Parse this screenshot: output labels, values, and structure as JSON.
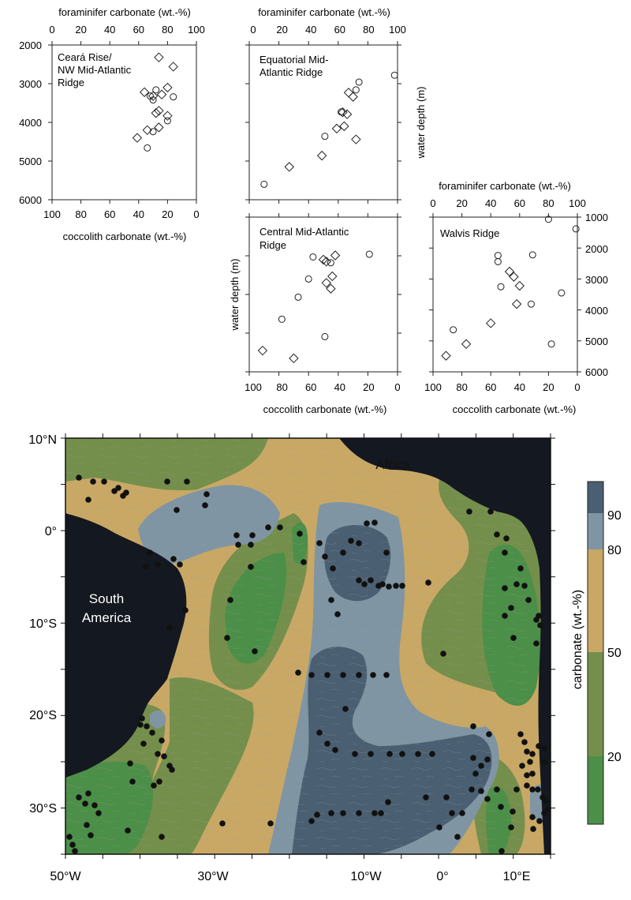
{
  "chart_data": [
    {
      "type": "scatter",
      "title": "Ceará Rise/ NW Mid-Atlantic Ridge",
      "title_lines": [
        "Ceará Rise/",
        "NW Mid-Atlantic",
        "Ridge"
      ],
      "top_axis_label": "foraminifer carbonate (wt.-%)",
      "bottom_axis_label": "coccolith carbonate (wt.-%)",
      "left_axis_label": "",
      "right_axis_label": "",
      "top_ticks": [
        "0",
        "20",
        "40",
        "60",
        "80",
        "100"
      ],
      "bottom_ticks": [
        "100",
        "80",
        "60",
        "40",
        "20",
        "0"
      ],
      "depth_ticks": [
        "2000",
        "3000",
        "4000",
        "5000",
        "6000"
      ],
      "depth_range": [
        2000,
        6000
      ],
      "foram_range": [
        0,
        100
      ],
      "series": [
        {
          "marker": "diamond",
          "points": [
            [
              74,
              2320
            ],
            [
              84,
              2560
            ],
            [
              64,
              3220
            ],
            [
              80,
              3100
            ],
            [
              70,
              3320
            ],
            [
              76,
              3280
            ],
            [
              74,
              3700
            ],
            [
              72,
              3760
            ],
            [
              80,
              3830
            ],
            [
              66,
              4200
            ],
            [
              74,
              4130
            ],
            [
              59,
              4400
            ]
          ]
        },
        {
          "marker": "circle",
          "points": [
            [
              68,
              3320
            ],
            [
              72,
              3160
            ],
            [
              70,
              3420
            ],
            [
              84,
              3340
            ],
            [
              80,
              3960
            ],
            [
              70,
              4240
            ],
            [
              66,
              4660
            ]
          ]
        }
      ]
    },
    {
      "type": "scatter",
      "title": "Equatorial Mid-Atlantic Ridge",
      "title_lines": [
        "Equatorial Mid-",
        "Atlantic Ridge"
      ],
      "top_axis_label": "foraminifer carbonate (wt.-%)",
      "bottom_axis_label": "",
      "left_axis_label": "",
      "right_axis_label": "water depth (m)",
      "top_ticks": [
        "0",
        "20",
        "40",
        "60",
        "80",
        "100"
      ],
      "bottom_ticks": [],
      "depth_ticks": [],
      "depth_range": [
        2000,
        6000
      ],
      "foram_range": [
        0,
        100
      ],
      "series": [
        {
          "marker": "diamond",
          "points": [
            [
              67,
              3230
            ],
            [
              70,
              3340
            ],
            [
              63,
              3740
            ],
            [
              66,
              3790
            ],
            [
              64,
              4100
            ],
            [
              59,
              4160
            ],
            [
              72,
              4440
            ],
            [
              49,
              4860
            ],
            [
              27,
              5150
            ]
          ]
        },
        {
          "marker": "circle",
          "points": [
            [
              98,
              2780
            ],
            [
              74,
              2960
            ],
            [
              72,
              3160
            ],
            [
              62,
              3730
            ],
            [
              51,
              4360
            ],
            [
              10,
              5600
            ]
          ]
        }
      ]
    },
    {
      "type": "scatter",
      "title": "Central Mid-Atlantic Ridge",
      "title_lines": [
        "Central Mid-Atlantic",
        "Ridge"
      ],
      "top_axis_label": "",
      "bottom_axis_label": "coccolith carbonate (wt.-%)",
      "left_axis_label": "water depth (m)",
      "right_axis_label": "",
      "top_ticks": [],
      "bottom_ticks": [
        "100",
        "80",
        "60",
        "40",
        "20",
        "0"
      ],
      "depth_ticks": [],
      "depth_range": [
        2000,
        6000
      ],
      "foram_range": [
        0,
        100
      ],
      "series": [
        {
          "marker": "diamond",
          "points": [
            [
              58,
              2990
            ],
            [
              50,
              3100
            ],
            [
              52,
              3150
            ],
            [
              56,
              3530
            ],
            [
              52,
              3700
            ],
            [
              55,
              3850
            ],
            [
              9,
              5450
            ],
            [
              30,
              5650
            ]
          ]
        },
        {
          "marker": "circle",
          "points": [
            [
              81,
              2960
            ],
            [
              43,
              3030
            ],
            [
              55,
              3180
            ],
            [
              40,
              3600
            ],
            [
              33,
              4070
            ],
            [
              22,
              4640
            ],
            [
              51,
              5090
            ]
          ]
        }
      ]
    },
    {
      "type": "scatter",
      "title": "Walvis Ridge",
      "title_lines": [
        "Walvis Ridge"
      ],
      "top_axis_label": "foraminifer carbonate (wt.-%)",
      "bottom_axis_label": "coccolith carbonate (wt.-%)",
      "left_axis_label": "",
      "right_axis_label": "",
      "top_ticks": [
        "0",
        "20",
        "40",
        "60",
        "80",
        "100"
      ],
      "bottom_ticks": [
        "100",
        "80",
        "60",
        "40",
        "20",
        "0"
      ],
      "depth_ticks": [
        "1000",
        "2000",
        "3000",
        "4000",
        "5000",
        "6000"
      ],
      "depth_range": [
        1000,
        6000
      ],
      "foram_range": [
        0,
        100
      ],
      "series": [
        {
          "marker": "diamond",
          "points": [
            [
              53,
              2760
            ],
            [
              56,
              2930
            ],
            [
              60,
              3220
            ],
            [
              58,
              3810
            ],
            [
              40,
              4430
            ],
            [
              23,
              5100
            ],
            [
              9,
              5480
            ]
          ]
        },
        {
          "marker": "circle",
          "points": [
            [
              80,
              1070
            ],
            [
              99,
              1380
            ],
            [
              45,
              2240
            ],
            [
              69,
              2220
            ],
            [
              45,
              2440
            ],
            [
              47,
              3250
            ],
            [
              68,
              3810
            ],
            [
              89,
              3450
            ],
            [
              14,
              4640
            ],
            [
              82,
              5100
            ]
          ]
        }
      ]
    },
    {
      "type": "map",
      "lon_ticks": [
        "50°W",
        "30°W",
        "10°W",
        "0°",
        "10°E"
      ],
      "lat_ticks": [
        "10°N",
        "0°",
        "10°S",
        "20°S",
        "30°S"
      ],
      "labels": {
        "africa": "Africa",
        "south_america": "South America",
        "south_america_lines": [
          "South",
          "America"
        ]
      },
      "colorbar": {
        "label": "carbonate (wt.-%)",
        "ticks": [
          "20",
          "50",
          "80",
          "90"
        ],
        "levels": [
          {
            "range": "<20",
            "color": "#4c8f48"
          },
          {
            "range": "20-50",
            "color": "#748f4b"
          },
          {
            "range": "50-80",
            "color": "#c9a865"
          },
          {
            "range": "80-90",
            "color": "#7f95a3"
          },
          {
            "range": ">90",
            "color": "#4a5f71"
          }
        ]
      },
      "land_color": "#141820"
    }
  ]
}
